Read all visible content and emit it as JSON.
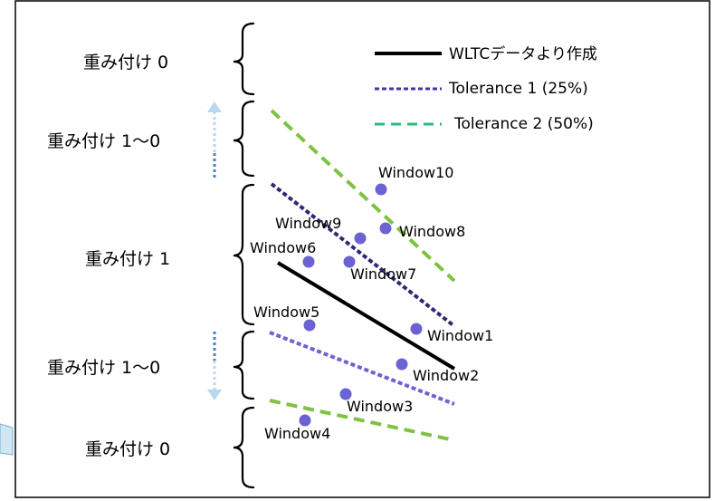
{
  "colors": {
    "wltc_line": "#000000",
    "tolerance1": "#3d3aa8",
    "tolerance2": "#7dc242",
    "point": "#6b63d1",
    "arrow_dotted": "#3f86c4",
    "arrow_light": "#b9d7ee",
    "border": "#000000"
  },
  "zones": [
    {
      "label": "重み付け 0"
    },
    {
      "label": "重み付け 1〜0"
    },
    {
      "label": "重み付け 1"
    },
    {
      "label": "重み付け 1〜0"
    },
    {
      "label": "重み付け 0"
    }
  ],
  "legend": [
    {
      "label": "WLTCデータより作成",
      "style": "solid"
    },
    {
      "label": "Tolerance 1 (25%)",
      "style": "dotted"
    },
    {
      "label": "Tolerance 2 (50%)",
      "style": "dashed"
    }
  ],
  "windows": [
    {
      "label": "Window1"
    },
    {
      "label": "Window2"
    },
    {
      "label": "Window3"
    },
    {
      "label": "Window4"
    },
    {
      "label": "Window5"
    },
    {
      "label": "Window6"
    },
    {
      "label": "Window7"
    },
    {
      "label": "Window8"
    },
    {
      "label": "Window9"
    },
    {
      "label": "Window10"
    }
  ]
}
